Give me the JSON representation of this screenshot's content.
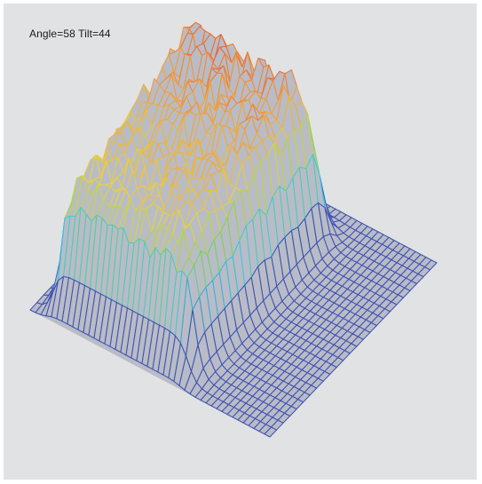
{
  "viewer": {
    "angle_label": "Angle=",
    "angle_value": "58",
    "tilt_label": "Tilt=",
    "tilt_value": "44"
  },
  "chart_data": {
    "type": "surface",
    "title": "",
    "view": {
      "angle": 58,
      "tilt": 44
    },
    "grid": {
      "rows": 26,
      "cols": 46
    },
    "colormap": [
      "#2f4db0",
      "#39c8e6",
      "#7ed34c",
      "#e8d43c",
      "#f29c38",
      "#e23a2c"
    ],
    "wire_base_color": "#3f52b3",
    "surface_fill": "#b9bcc6"
  }
}
